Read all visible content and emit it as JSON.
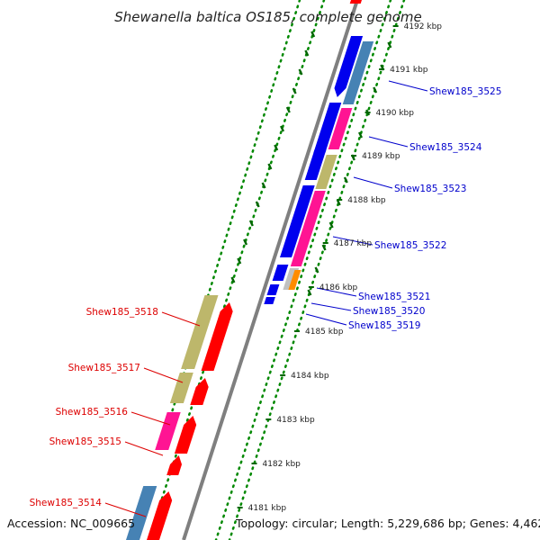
{
  "title": "Shewanella baltica OS185, complete genome",
  "accession_label": "Accession: NC_009665",
  "footer_info": "Topology: circular; Length: 5,229,686 bp; Genes: 4,462",
  "ticks": [
    "4192 kbp",
    "4191 kbp",
    "4190 kbp",
    "4189 kbp",
    "4188 kbp",
    "4187 kbp",
    "4186 kbp",
    "4185 kbp",
    "4184 kbp",
    "4183 kbp",
    "4182 kbp",
    "4181 kbp"
  ],
  "forward_genes": [
    {
      "name": "Shew185_3525",
      "color": "#0000cc"
    },
    {
      "name": "Shew185_3524",
      "color": "#0000cc"
    },
    {
      "name": "Shew185_3523",
      "color": "#0000cc"
    },
    {
      "name": "Shew185_3522",
      "color": "#0000cc"
    },
    {
      "name": "Shew185_3521",
      "color": "#0000cc"
    },
    {
      "name": "Shew185_3520",
      "color": "#0000cc"
    },
    {
      "name": "Shew185_3519",
      "color": "#0000cc"
    }
  ],
  "reverse_genes": [
    {
      "name": "Shew185_3518",
      "color": "#dd0000"
    },
    {
      "name": "Shew185_3517",
      "color": "#dd0000"
    },
    {
      "name": "Shew185_3516",
      "color": "#dd0000"
    },
    {
      "name": "Shew185_3515",
      "color": "#dd0000"
    },
    {
      "name": "Shew185_3514",
      "color": "#dd0000"
    }
  ],
  "colors": {
    "backbone": "#7f7f7f",
    "cds_forward": "#0000ee",
    "cds_reverse": "#ff0000",
    "steelblue": "#4682b4",
    "pink": "#ff1493",
    "khaki": "#bdb76b",
    "orange": "#ff8c00",
    "silver": "#c0c0c0",
    "guide_dots": "#008800",
    "guide_dash": "#006600"
  }
}
